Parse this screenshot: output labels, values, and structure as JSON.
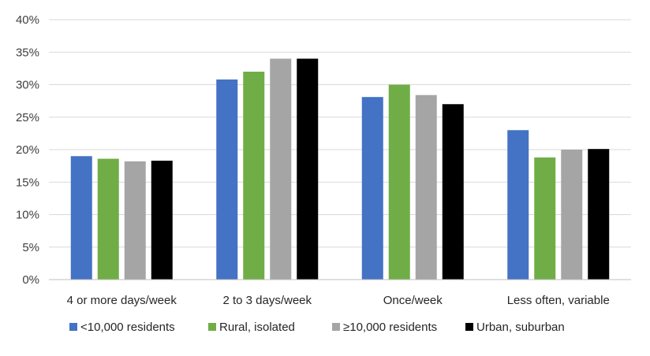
{
  "chart_data": {
    "type": "bar",
    "categories": [
      "4 or more days/week",
      "2 to 3 days/week",
      "Once/week",
      "Less often, variable"
    ],
    "series": [
      {
        "name": "<10,000 residents",
        "color": "#4472C4",
        "values": [
          0.19,
          0.308,
          0.281,
          0.23
        ]
      },
      {
        "name": "Rural, isolated",
        "color": "#70AD47",
        "values": [
          0.186,
          0.32,
          0.3,
          0.188
        ]
      },
      {
        "name": "≥10,000 residents",
        "color": "#A5A5A5",
        "values": [
          0.182,
          0.34,
          0.284,
          0.2
        ]
      },
      {
        "name": "Urban, suburban",
        "color": "#000000",
        "values": [
          0.183,
          0.34,
          0.27,
          0.201
        ]
      }
    ],
    "ylim": [
      0,
      0.4
    ],
    "yticks": [
      0,
      0.05,
      0.1,
      0.15,
      0.2,
      0.25,
      0.3,
      0.35,
      0.4
    ],
    "ytick_labels": [
      "0%",
      "5%",
      "10%",
      "15%",
      "20%",
      "25%",
      "30%",
      "35%",
      "40%"
    ],
    "grid": true,
    "legend": "bottom",
    "title": "",
    "xlabel": "",
    "ylabel": ""
  }
}
